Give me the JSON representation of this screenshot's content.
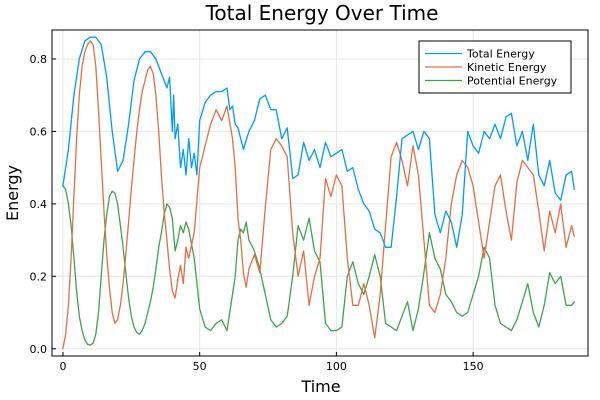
{
  "chart_data": {
    "type": "line",
    "title": "Total Energy Over Time",
    "xlabel": "Time",
    "ylabel": "Energy",
    "xlim": [
      -4,
      192
    ],
    "ylim": [
      -0.02,
      0.88
    ],
    "xticks": [
      0,
      50,
      100,
      150
    ],
    "yticks": [
      0.0,
      0.2,
      0.4,
      0.6,
      0.8
    ],
    "xtick_labels": [
      "0",
      "50",
      "100",
      "150"
    ],
    "ytick_labels": [
      "0.0",
      "0.2",
      "0.4",
      "0.6",
      "0.8"
    ],
    "grid": true,
    "legend_position": "top-right",
    "series": [
      {
        "name": "Total Energy",
        "color": "#009af9",
        "x": [
          0,
          2,
          4,
          6,
          8,
          10,
          12,
          14,
          16,
          18,
          20,
          22,
          24,
          26,
          28,
          30,
          32,
          34,
          36,
          38,
          39,
          40,
          40.5,
          41,
          42,
          43,
          44,
          45,
          46,
          47,
          48,
          49,
          50,
          52,
          54,
          56,
          58,
          60,
          61,
          62,
          63,
          64,
          66,
          68,
          70,
          72,
          74,
          76,
          78,
          80,
          82,
          84,
          86,
          88,
          90,
          92,
          94,
          96,
          98,
          100,
          102,
          104,
          106,
          108,
          110,
          112,
          114,
          116,
          118,
          120,
          122,
          124,
          126,
          128,
          130,
          132,
          134,
          136,
          138,
          140,
          142,
          144,
          146,
          148,
          150,
          152,
          154,
          156,
          158,
          160,
          162,
          164,
          166,
          168,
          170,
          172,
          174,
          176,
          178,
          180,
          182,
          184,
          186,
          187
        ],
        "y": [
          0.45,
          0.55,
          0.7,
          0.8,
          0.85,
          0.86,
          0.86,
          0.84,
          0.75,
          0.6,
          0.49,
          0.52,
          0.62,
          0.74,
          0.8,
          0.82,
          0.82,
          0.8,
          0.76,
          0.72,
          0.75,
          0.6,
          0.7,
          0.58,
          0.62,
          0.5,
          0.55,
          0.48,
          0.58,
          0.5,
          0.54,
          0.48,
          0.63,
          0.68,
          0.7,
          0.71,
          0.71,
          0.72,
          0.66,
          0.67,
          0.62,
          0.61,
          0.55,
          0.6,
          0.63,
          0.69,
          0.7,
          0.66,
          0.66,
          0.58,
          0.61,
          0.47,
          0.48,
          0.57,
          0.52,
          0.55,
          0.5,
          0.57,
          0.53,
          0.54,
          0.55,
          0.49,
          0.5,
          0.44,
          0.4,
          0.38,
          0.33,
          0.32,
          0.28,
          0.28,
          0.42,
          0.58,
          0.59,
          0.6,
          0.55,
          0.6,
          0.58,
          0.37,
          0.32,
          0.38,
          0.35,
          0.28,
          0.37,
          0.6,
          0.56,
          0.54,
          0.6,
          0.58,
          0.62,
          0.58,
          0.64,
          0.65,
          0.56,
          0.6,
          0.52,
          0.62,
          0.48,
          0.45,
          0.52,
          0.43,
          0.41,
          0.48,
          0.49,
          0.44
        ]
      },
      {
        "name": "Kinetic Energy",
        "color": "#e26f46",
        "x": [
          0,
          1,
          2,
          3,
          4,
          5,
          6,
          7,
          8,
          9,
          10,
          11,
          12,
          13,
          14,
          15,
          16,
          17,
          18,
          19,
          20,
          21,
          22,
          23,
          24,
          25,
          26,
          27,
          28,
          29,
          30,
          31,
          32,
          33,
          34,
          35,
          36,
          37,
          38,
          39,
          40,
          41,
          42,
          43,
          44,
          45,
          46,
          48,
          50,
          52,
          54,
          56,
          58,
          60,
          62,
          63,
          64,
          65,
          66,
          67,
          68,
          70,
          72,
          74,
          76,
          78,
          80,
          82,
          84,
          86,
          88,
          90,
          92,
          94,
          96,
          98,
          100,
          102,
          104,
          106,
          108,
          110,
          112,
          114,
          116,
          118,
          120,
          122,
          124,
          126,
          128,
          130,
          132,
          134,
          136,
          138,
          140,
          142,
          144,
          146,
          148,
          150,
          152,
          154,
          156,
          158,
          160,
          162,
          164,
          166,
          168,
          170,
          172,
          174,
          176,
          178,
          180,
          182,
          184,
          186,
          187
        ],
        "y": [
          0.0,
          0.04,
          0.12,
          0.25,
          0.42,
          0.58,
          0.7,
          0.78,
          0.82,
          0.84,
          0.85,
          0.84,
          0.78,
          0.66,
          0.52,
          0.38,
          0.26,
          0.17,
          0.1,
          0.07,
          0.08,
          0.12,
          0.18,
          0.26,
          0.35,
          0.44,
          0.52,
          0.6,
          0.66,
          0.71,
          0.74,
          0.77,
          0.78,
          0.76,
          0.7,
          0.6,
          0.48,
          0.38,
          0.3,
          0.22,
          0.16,
          0.14,
          0.19,
          0.23,
          0.18,
          0.28,
          0.25,
          0.32,
          0.5,
          0.56,
          0.62,
          0.66,
          0.63,
          0.67,
          0.58,
          0.5,
          0.36,
          0.3,
          0.21,
          0.17,
          0.22,
          0.26,
          0.21,
          0.39,
          0.55,
          0.58,
          0.56,
          0.53,
          0.32,
          0.2,
          0.27,
          0.12,
          0.2,
          0.25,
          0.47,
          0.42,
          0.48,
          0.45,
          0.25,
          0.12,
          0.12,
          0.18,
          0.12,
          0.03,
          0.15,
          0.34,
          0.53,
          0.57,
          0.52,
          0.45,
          0.56,
          0.48,
          0.3,
          0.12,
          0.1,
          0.15,
          0.25,
          0.4,
          0.48,
          0.52,
          0.5,
          0.45,
          0.35,
          0.25,
          0.35,
          0.45,
          0.48,
          0.38,
          0.3,
          0.46,
          0.52,
          0.5,
          0.48,
          0.38,
          0.27,
          0.38,
          0.32,
          0.4,
          0.28,
          0.34,
          0.31
        ]
      },
      {
        "name": "Potential Energy",
        "color": "#3da44d",
        "x": [
          0,
          1,
          2,
          3,
          4,
          5,
          6,
          7,
          8,
          9,
          10,
          11,
          12,
          13,
          14,
          15,
          16,
          17,
          18,
          19,
          20,
          21,
          22,
          23,
          24,
          25,
          26,
          27,
          28,
          29,
          30,
          31,
          32,
          33,
          34,
          35,
          36,
          37,
          38,
          39,
          40,
          41,
          42,
          43,
          44,
          45,
          46,
          48,
          50,
          52,
          54,
          56,
          58,
          60,
          62,
          63,
          64,
          65,
          66,
          67,
          68,
          70,
          72,
          74,
          76,
          78,
          80,
          82,
          84,
          86,
          88,
          90,
          92,
          94,
          96,
          98,
          100,
          102,
          104,
          106,
          108,
          110,
          112,
          114,
          116,
          118,
          120,
          122,
          124,
          126,
          128,
          130,
          132,
          134,
          136,
          138,
          140,
          142,
          144,
          146,
          148,
          150,
          152,
          154,
          156,
          158,
          160,
          162,
          164,
          166,
          168,
          170,
          172,
          174,
          176,
          178,
          180,
          182,
          184,
          186,
          187
        ],
        "y": [
          0.45,
          0.44,
          0.4,
          0.34,
          0.25,
          0.16,
          0.09,
          0.05,
          0.025,
          0.012,
          0.01,
          0.015,
          0.04,
          0.1,
          0.2,
          0.3,
          0.37,
          0.42,
          0.435,
          0.43,
          0.4,
          0.34,
          0.28,
          0.21,
          0.14,
          0.09,
          0.06,
          0.045,
          0.04,
          0.05,
          0.07,
          0.1,
          0.13,
          0.17,
          0.22,
          0.28,
          0.32,
          0.37,
          0.4,
          0.39,
          0.36,
          0.27,
          0.3,
          0.34,
          0.32,
          0.35,
          0.33,
          0.25,
          0.11,
          0.06,
          0.05,
          0.07,
          0.08,
          0.05,
          0.15,
          0.2,
          0.3,
          0.33,
          0.32,
          0.35,
          0.3,
          0.27,
          0.22,
          0.15,
          0.08,
          0.06,
          0.07,
          0.09,
          0.2,
          0.34,
          0.3,
          0.36,
          0.27,
          0.24,
          0.07,
          0.05,
          0.05,
          0.06,
          0.2,
          0.24,
          0.18,
          0.15,
          0.2,
          0.26,
          0.2,
          0.07,
          0.06,
          0.05,
          0.09,
          0.13,
          0.05,
          0.11,
          0.21,
          0.32,
          0.25,
          0.22,
          0.15,
          0.13,
          0.1,
          0.09,
          0.1,
          0.15,
          0.2,
          0.28,
          0.25,
          0.12,
          0.07,
          0.06,
          0.05,
          0.08,
          0.13,
          0.18,
          0.1,
          0.06,
          0.12,
          0.21,
          0.18,
          0.2,
          0.12,
          0.12,
          0.13
        ]
      }
    ]
  }
}
